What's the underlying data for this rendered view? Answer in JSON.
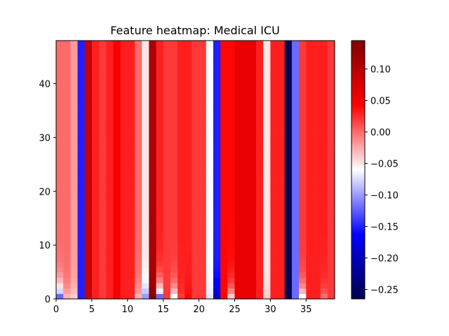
{
  "chart_data": {
    "type": "heatmap",
    "title": "Feature heatmap: Medical ICU",
    "xlabel": "",
    "ylabel": "",
    "n_columns": 39,
    "n_rows": 48,
    "xlim": [
      0,
      39
    ],
    "ylim": [
      0,
      48
    ],
    "x_ticks": [
      0,
      5,
      10,
      15,
      20,
      25,
      30,
      35
    ],
    "y_ticks": [
      0,
      10,
      20,
      30,
      40
    ],
    "colormap": "seismic",
    "color_range": [
      -0.265,
      0.145
    ],
    "colorbar_ticks": [
      0.1,
      0.05,
      0.0,
      -0.05,
      -0.1,
      -0.15,
      -0.2,
      -0.25
    ],
    "colorbar_tick_labels": [
      "0.10",
      "0.05",
      "0.00",
      "−0.05",
      "−0.10",
      "−0.15",
      "−0.20",
      "−0.25"
    ],
    "column_values": [
      0.0,
      0.0,
      -0.02,
      -0.15,
      0.09,
      0.03,
      0.02,
      0.03,
      0.05,
      0.03,
      0.03,
      0.0,
      -0.05,
      0.11,
      0.03,
      0.02,
      0.02,
      0.03,
      0.03,
      0.02,
      0.02,
      -0.06,
      -0.15,
      0.04,
      0.04,
      0.06,
      0.06,
      0.06,
      0.03,
      -0.05,
      0.03,
      0.03,
      -0.26,
      -0.12,
      0.02,
      0.03,
      0.03,
      0.03,
      0.02
    ],
    "column_bottom_values": [
      -0.12,
      -0.03,
      -0.04,
      -0.15,
      0.09,
      0.03,
      0.02,
      0.03,
      0.05,
      0.03,
      0.03,
      -0.03,
      -0.1,
      0.14,
      -0.12,
      0.02,
      -0.06,
      0.02,
      0.04,
      0.02,
      0.02,
      -0.07,
      -0.2,
      0.04,
      -0.04,
      0.06,
      0.06,
      0.06,
      0.03,
      -0.04,
      0.03,
      0.03,
      -0.26,
      -0.12,
      -0.06,
      0.03,
      0.03,
      0.0,
      0.02
    ]
  }
}
